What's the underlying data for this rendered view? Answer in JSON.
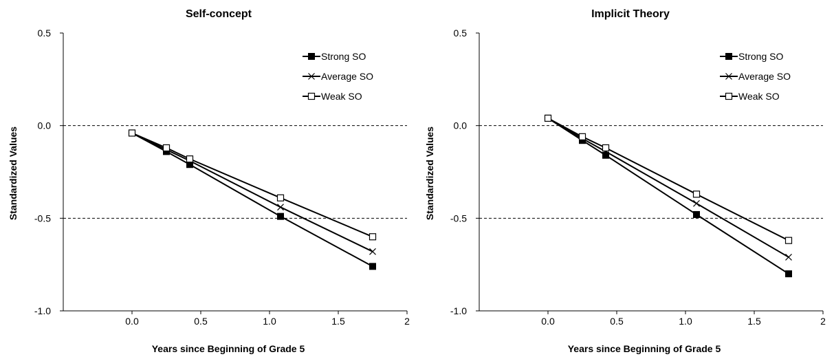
{
  "chart_data": [
    {
      "type": "line",
      "title": "Self-concept",
      "xlabel": "Years since Beginning of Grade 5",
      "ylabel": "Standardized Values",
      "xlim": [
        -0.5,
        2
      ],
      "ylim": [
        -1.0,
        0.5
      ],
      "x_ticks": [
        "0.0",
        "0.5",
        "1.0",
        "1.5",
        "2"
      ],
      "x_tick_values": [
        0,
        0.5,
        1.0,
        1.5,
        2
      ],
      "y_ticks": [
        "0.5",
        "0.0",
        "-0.5",
        "-1.0"
      ],
      "y_tick_values": [
        0.5,
        0.0,
        -0.5,
        -1.0
      ],
      "reference_lines_y": [
        0.0,
        -0.5
      ],
      "legend_position": "top-right",
      "x": [
        0.0,
        0.25,
        0.42,
        1.08,
        1.75
      ],
      "series": [
        {
          "name": "Strong SO",
          "marker": "filled-square",
          "values": [
            -0.04,
            -0.14,
            -0.21,
            -0.49,
            -0.76
          ]
        },
        {
          "name": "Average SO",
          "marker": "x",
          "values": [
            -0.04,
            -0.13,
            -0.19,
            -0.44,
            -0.68
          ]
        },
        {
          "name": "Weak SO",
          "marker": "open-square",
          "values": [
            -0.04,
            -0.12,
            -0.18,
            -0.39,
            -0.6
          ]
        }
      ]
    },
    {
      "type": "line",
      "title": "Implicit Theory",
      "xlabel": "Years since Beginning of Grade 5",
      "ylabel": "Standardized Values",
      "xlim": [
        -0.5,
        2
      ],
      "ylim": [
        -1.0,
        0.5
      ],
      "x_ticks": [
        "0.0",
        "0.5",
        "1.0",
        "1.5",
        "2"
      ],
      "x_tick_values": [
        0,
        0.5,
        1.0,
        1.5,
        2
      ],
      "y_ticks": [
        "0.5",
        "0.0",
        "-0.5",
        "-1.0"
      ],
      "y_tick_values": [
        0.5,
        0.0,
        -0.5,
        -1.0
      ],
      "reference_lines_y": [
        0.0,
        -0.5
      ],
      "legend_position": "top-right",
      "x": [
        0.0,
        0.25,
        0.42,
        1.08,
        1.75
      ],
      "series": [
        {
          "name": "Strong SO",
          "marker": "filled-square",
          "values": [
            0.04,
            -0.08,
            -0.16,
            -0.48,
            -0.8
          ]
        },
        {
          "name": "Average SO",
          "marker": "x",
          "values": [
            0.04,
            -0.07,
            -0.14,
            -0.42,
            -0.71
          ]
        },
        {
          "name": "Weak SO",
          "marker": "open-square",
          "values": [
            0.04,
            -0.06,
            -0.12,
            -0.37,
            -0.62
          ]
        }
      ]
    }
  ]
}
